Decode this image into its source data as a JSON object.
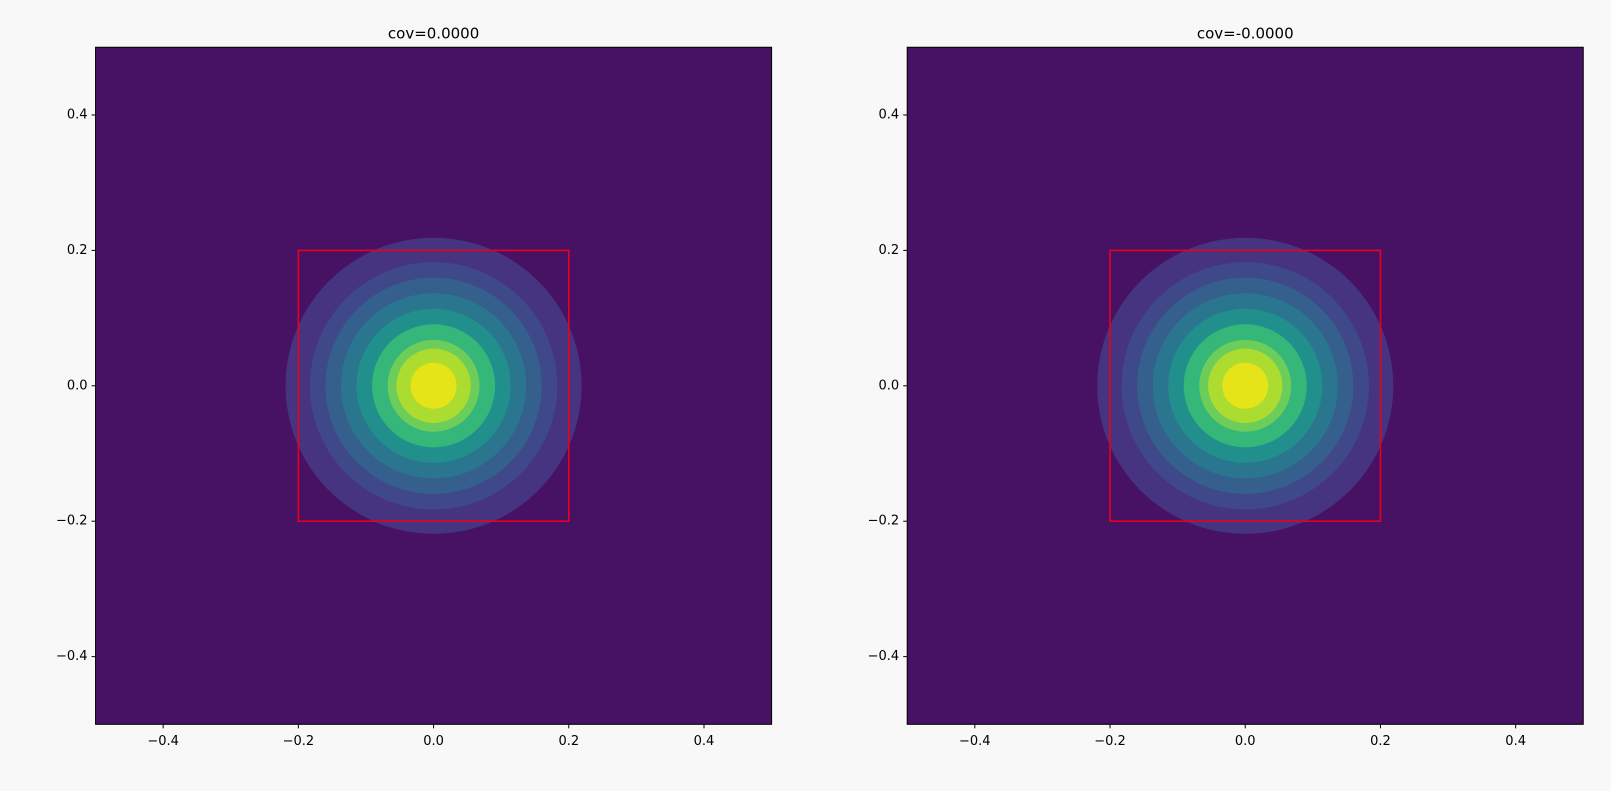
{
  "chart_data": [
    {
      "type": "contour",
      "title": "cov=0.0000",
      "xlim": [
        -0.5,
        0.5
      ],
      "ylim": [
        -0.5,
        0.5
      ],
      "xticks": [
        {
          "value": -0.4,
          "label": "−0.4"
        },
        {
          "value": -0.2,
          "label": "−0.2"
        },
        {
          "value": 0,
          "label": "0.0"
        },
        0.2,
        0.4
      ],
      "yticks": [
        {
          "value": -0.4,
          "label": "−0.4"
        },
        {
          "value": -0.2,
          "label": "−0.2"
        },
        {
          "value": 0,
          "label": "0.0"
        },
        0.2,
        0.4
      ],
      "background": "#471164",
      "center": [
        0,
        0
      ],
      "bands": [
        {
          "radius": 0.219,
          "color": "#463480"
        },
        {
          "radius": 0.183,
          "color": "#3f4889"
        },
        {
          "radius": 0.16,
          "color": "#355f8d"
        },
        {
          "radius": 0.137,
          "color": "#2a768e"
        },
        {
          "radius": 0.114,
          "color": "#21908d"
        },
        {
          "radius": 0.091,
          "color": "#35b779"
        },
        {
          "radius": 0.068,
          "color": "#6ccd5a"
        },
        {
          "radius": 0.055,
          "color": "#addc30"
        },
        {
          "radius": 0.034,
          "color": "#e5e419"
        }
      ],
      "rect": {
        "x": [
          -0.2,
          0.2
        ],
        "y": [
          -0.2,
          0.2
        ],
        "color": "#e8001c"
      }
    },
    {
      "type": "contour",
      "title": "cov=-0.0000",
      "xlim": [
        -0.5,
        0.5
      ],
      "ylim": [
        -0.5,
        0.5
      ],
      "xticks": [
        {
          "value": -0.4,
          "label": "−0.4"
        },
        {
          "value": -0.2,
          "label": "−0.2"
        },
        {
          "value": 0,
          "label": "0.0"
        },
        0.2,
        0.4
      ],
      "yticks": [
        {
          "value": -0.4,
          "label": "−0.4"
        },
        {
          "value": -0.2,
          "label": "−0.2"
        },
        {
          "value": 0,
          "label": "0.0"
        },
        0.2,
        0.4
      ],
      "background": "#471164",
      "center": [
        0,
        0
      ],
      "bands": [
        {
          "radius": 0.219,
          "color": "#463480"
        },
        {
          "radius": 0.183,
          "color": "#3f4889"
        },
        {
          "radius": 0.16,
          "color": "#355f8d"
        },
        {
          "radius": 0.137,
          "color": "#2a768e"
        },
        {
          "radius": 0.114,
          "color": "#21908d"
        },
        {
          "radius": 0.091,
          "color": "#35b779"
        },
        {
          "radius": 0.068,
          "color": "#6ccd5a"
        },
        {
          "radius": 0.055,
          "color": "#addc30"
        },
        {
          "radius": 0.034,
          "color": "#e5e419"
        }
      ],
      "rect": {
        "x": [
          -0.2,
          0.2
        ],
        "y": [
          -0.2,
          0.2
        ],
        "color": "#e8001c"
      }
    }
  ]
}
